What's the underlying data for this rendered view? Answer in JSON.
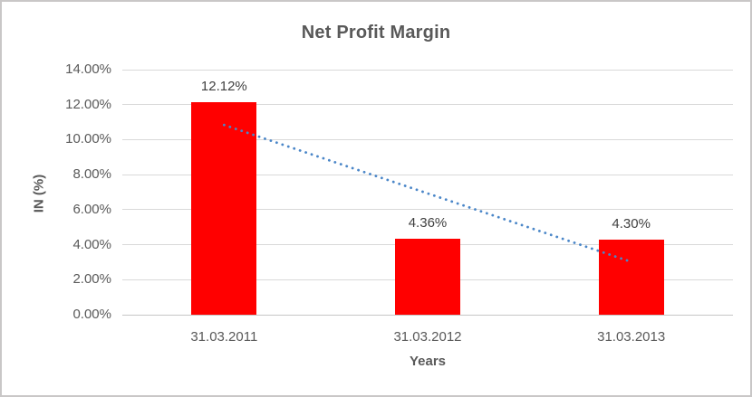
{
  "chart_data": {
    "type": "bar",
    "title": "Net Profit Margin",
    "xlabel": "Years",
    "ylabel": "IN (%)",
    "categories": [
      "31.03.2011",
      "31.03.2012",
      "31.03.2013"
    ],
    "values": [
      12.12,
      4.36,
      4.3
    ],
    "data_labels": [
      "12.12%",
      "4.36%",
      "4.30%"
    ],
    "ylim": [
      0,
      14
    ],
    "ytick_step": 2,
    "yticks": [
      "0.00%",
      "2.00%",
      "4.00%",
      "6.00%",
      "8.00%",
      "10.00%",
      "12.00%",
      "14.00%"
    ],
    "grid": true,
    "legend": "none",
    "bar_color": "#FF0000",
    "trendline": {
      "type": "linear",
      "style": "dotted",
      "color": "#4A86C8",
      "points": [
        10.84,
        6.93,
        3.02
      ]
    }
  },
  "colors": {
    "title_text": "#595959",
    "axis_text": "#595959",
    "data_label_text": "#404040",
    "gridline": "#D9D9D9",
    "frame_border": "#C9C7C7",
    "background": "#FFFFFF"
  }
}
